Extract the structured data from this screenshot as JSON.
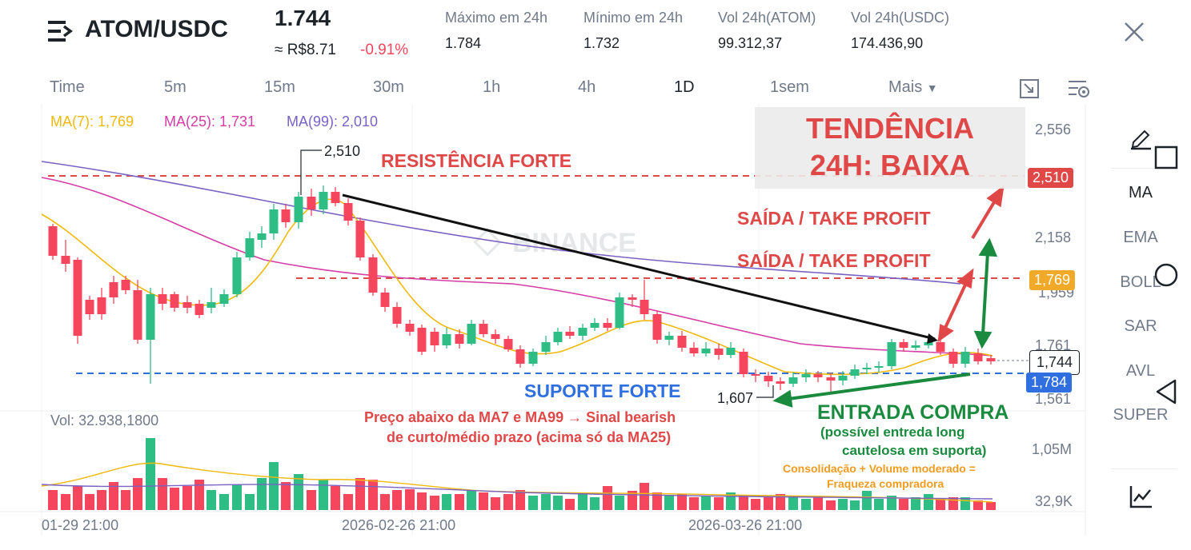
{
  "header": {
    "pair": "ATOM/USDC",
    "price": "1.744",
    "fiat": "≈ R$8.71",
    "change": "-0.91%",
    "stats": [
      {
        "label": "Máximo em 24h",
        "value": "1.784"
      },
      {
        "label": "Mínimo em 24h",
        "value": "1.732"
      },
      {
        "label": "Vol 24h(ATOM)",
        "value": "99.312,37"
      },
      {
        "label": "Vol 24h(USDC)",
        "value": "174.436,90"
      }
    ]
  },
  "timeframes": [
    "Time",
    "5m",
    "15m",
    "30m",
    "1h",
    "4h",
    "1D",
    "1sem",
    "Mais"
  ],
  "active_timeframe": "1D",
  "ma_legend": {
    "ma7": "MA(7): 1,769",
    "ma25": "MA(25): 1,731",
    "ma99": "MA(99): 2,010"
  },
  "side_tools": [
    "MA",
    "EMA",
    "BOLL",
    "SAR",
    "AVL",
    "SUPER"
  ],
  "price_axis": [
    "2,556",
    "2,158",
    "1,959",
    "1,761",
    "1,561"
  ],
  "price_tags": {
    "resistance": "2,510",
    "ma_level": "1,769",
    "current": "1,744",
    "support": "1,784"
  },
  "volume": {
    "label": "Vol: 32.938,1800",
    "axis": [
      "1,05M",
      "32,9K"
    ]
  },
  "x_axis": [
    "01-29 21:00",
    "2026-02-26 21:00",
    "2026-03-26 21:00"
  ],
  "chart_markers": {
    "high": "2,510",
    "low": "1,607"
  },
  "watermark": "BINANCE",
  "annotations": {
    "trend": [
      "TENDÊNCIA",
      "24H: BAIXA"
    ],
    "resistance": "RESISTÊNCIA FORTE",
    "take_profit_1": "SAÍDA / TAKE PROFIT",
    "take_profit_2": "SAÍDA / TAKE PROFIT",
    "support": "SUPORTE FORTE",
    "bearish": [
      "Preço abaixo da MA7 e MA99 → Sinal bearish",
      "de curto/médio prazo (acima só da MA25)"
    ],
    "entry": "ENTRADA COMPRA",
    "entry_note": [
      "(possível entreda long",
      "cautelosa em suporta)"
    ],
    "consolidation": [
      "Consolidação + Volume moderado =",
      "Fraqueza compradora"
    ]
  },
  "colors": {
    "up": "#2ebd85",
    "down": "#f6465d",
    "ma7": "#f0b90b",
    "ma25": "#d63ca6",
    "ma99": "#7a62c4"
  }
}
